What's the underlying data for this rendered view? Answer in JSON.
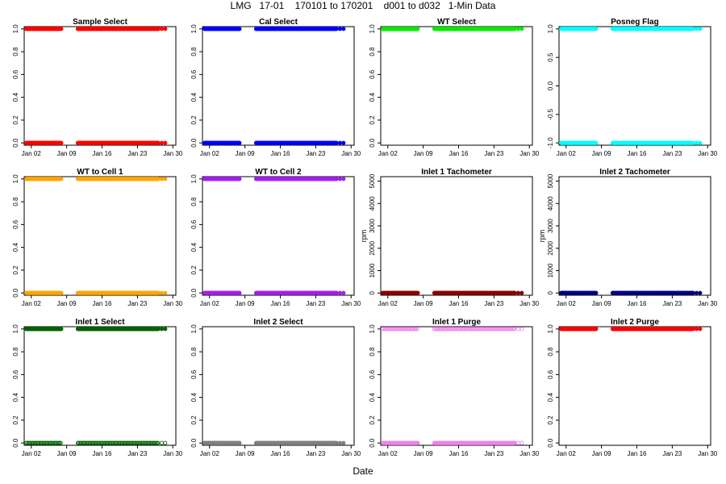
{
  "page": {
    "title": "LMG   17-01    170101 to 170201    d001 to d032   1-Min Data",
    "xlabel": "Date"
  },
  "chart_data": [
    {
      "type": "scatter",
      "title": "Sample Select",
      "ylabel": "",
      "ylim": [
        -0.02,
        1.02
      ],
      "yticks": [
        "0.0",
        "0.2",
        "0.4",
        "0.6",
        "0.8",
        "1.0"
      ],
      "ytick_values": [
        0,
        0.2,
        0.4,
        0.6,
        0.8,
        1.0
      ],
      "xticks": [
        "Jan 02",
        "Jan 09",
        "Jan 16",
        "Jan 23",
        "Jan 30"
      ],
      "xtick_days": [
        2,
        9,
        16,
        23,
        30
      ],
      "xlim_days": [
        0.6,
        30.6
      ],
      "color": "#ff0000",
      "marker": "filled",
      "series": [
        {
          "y": 1,
          "segments": [
            [
              1.0,
              8.0
            ],
            [
              11.2,
              27.2
            ]
          ],
          "extra": [
            27.8,
            28.5
          ]
        },
        {
          "y": 0,
          "segments": [
            [
              1.0,
              8.0
            ],
            [
              11.2,
              27.2
            ]
          ],
          "extra": [
            27.8,
            28.5
          ]
        }
      ]
    },
    {
      "type": "scatter",
      "title": "Cal Select",
      "ylabel": "",
      "ylim": [
        -0.02,
        1.02
      ],
      "yticks": [
        "0.0",
        "0.2",
        "0.4",
        "0.6",
        "0.8",
        "1.0"
      ],
      "ytick_values": [
        0,
        0.2,
        0.4,
        0.6,
        0.8,
        1.0
      ],
      "xticks": [
        "Jan 02",
        "Jan 09",
        "Jan 16",
        "Jan 23",
        "Jan 30"
      ],
      "xtick_days": [
        2,
        9,
        16,
        23,
        30
      ],
      "xlim_days": [
        0.6,
        30.6
      ],
      "color": "#0000ff",
      "marker": "filled",
      "series": [
        {
          "y": 1,
          "segments": [
            [
              1.0,
              8.0
            ],
            [
              11.2,
              27.2
            ]
          ],
          "extra": [
            27.8,
            28.5
          ]
        },
        {
          "y": 0,
          "segments": [
            [
              1.0,
              8.0
            ],
            [
              11.2,
              27.2
            ]
          ],
          "extra": [
            27.8,
            28.5
          ]
        }
      ]
    },
    {
      "type": "scatter",
      "title": "WT Select",
      "ylabel": "",
      "ylim": [
        -0.02,
        1.02
      ],
      "yticks": [
        "0.0",
        "0.2",
        "0.4",
        "0.6",
        "0.8",
        "1.0"
      ],
      "ytick_values": [
        0,
        0.2,
        0.4,
        0.6,
        0.8,
        1.0
      ],
      "xticks": [
        "Jan 02",
        "Jan 09",
        "Jan 16",
        "Jan 23",
        "Jan 30"
      ],
      "xtick_days": [
        2,
        9,
        16,
        23,
        30
      ],
      "xlim_days": [
        0.6,
        30.6
      ],
      "color": "#00ee00",
      "marker": "filled",
      "series": [
        {
          "y": 1,
          "segments": [
            [
              1.0,
              8.0
            ],
            [
              11.2,
              27.2
            ]
          ],
          "extra": [
            27.8,
            28.5
          ]
        }
      ]
    },
    {
      "type": "scatter",
      "title": "Posneg Flag",
      "ylabel": "",
      "ylim": [
        -1.04,
        1.04
      ],
      "yticks": [
        "-1.0",
        "-0.5",
        "0.0",
        "0.5",
        "1.0"
      ],
      "ytick_values": [
        -1,
        -0.5,
        0,
        0.5,
        1.0
      ],
      "xticks": [
        "Jan 02",
        "Jan 09",
        "Jan 16",
        "Jan 23",
        "Jan 30"
      ],
      "xtick_days": [
        2,
        9,
        16,
        23,
        30
      ],
      "xlim_days": [
        0.6,
        30.6
      ],
      "color": "#00ffff",
      "marker": "filled",
      "series": [
        {
          "y": 1,
          "segments": [
            [
              1.0,
              8.0
            ],
            [
              11.2,
              27.2
            ]
          ],
          "extra": [
            27.8,
            28.5
          ]
        },
        {
          "y": -1,
          "segments": [
            [
              1.0,
              8.0
            ],
            [
              11.2,
              27.2
            ]
          ],
          "extra": [
            27.8,
            28.5
          ]
        }
      ]
    },
    {
      "type": "scatter",
      "title": "WT to Cell 1",
      "ylabel": "",
      "ylim": [
        -0.02,
        1.02
      ],
      "yticks": [
        "0.0",
        "0.2",
        "0.4",
        "0.6",
        "0.8",
        "1.0"
      ],
      "ytick_values": [
        0,
        0.2,
        0.4,
        0.6,
        0.8,
        1.0
      ],
      "xticks": [
        "Jan 02",
        "Jan 09",
        "Jan 16",
        "Jan 23",
        "Jan 30"
      ],
      "xtick_days": [
        2,
        9,
        16,
        23,
        30
      ],
      "xlim_days": [
        0.6,
        30.6
      ],
      "color": "#ffa500",
      "marker": "filled",
      "series": [
        {
          "y": 1,
          "segments": [
            [
              1.0,
              8.0
            ],
            [
              11.2,
              27.2
            ]
          ],
          "extra": [
            27.8,
            28.5
          ]
        },
        {
          "y": 0,
          "segments": [
            [
              1.0,
              8.0
            ],
            [
              11.2,
              27.2
            ]
          ],
          "extra": [
            27.8,
            28.5
          ]
        }
      ]
    },
    {
      "type": "scatter",
      "title": "WT to Cell 2",
      "ylabel": "",
      "ylim": [
        -0.02,
        1.02
      ],
      "yticks": [
        "0.0",
        "0.2",
        "0.4",
        "0.6",
        "0.8",
        "1.0"
      ],
      "ytick_values": [
        0,
        0.2,
        0.4,
        0.6,
        0.8,
        1.0
      ],
      "xticks": [
        "Jan 02",
        "Jan 09",
        "Jan 16",
        "Jan 23",
        "Jan 30"
      ],
      "xtick_days": [
        2,
        9,
        16,
        23,
        30
      ],
      "xlim_days": [
        0.6,
        30.6
      ],
      "color": "#a020f0",
      "marker": "filled",
      "series": [
        {
          "y": 1,
          "segments": [
            [
              1.0,
              8.0
            ],
            [
              11.2,
              27.2
            ]
          ],
          "extra": [
            27.8,
            28.5
          ]
        },
        {
          "y": 0,
          "segments": [
            [
              1.0,
              8.0
            ],
            [
              11.2,
              27.2
            ]
          ],
          "extra": [
            27.8,
            28.5
          ]
        }
      ]
    },
    {
      "type": "scatter",
      "title": "Inlet 1 Tachometer",
      "ylabel": "rpm",
      "ylim": [
        -100,
        5200
      ],
      "yticks": [
        "0",
        "1000",
        "2000",
        "3000",
        "4000",
        "5000"
      ],
      "ytick_values": [
        0,
        1000,
        2000,
        3000,
        4000,
        5000
      ],
      "xticks": [
        "Jan 02",
        "Jan 09",
        "Jan 16",
        "Jan 23",
        "Jan 30"
      ],
      "xtick_days": [
        2,
        9,
        16,
        23,
        30
      ],
      "xlim_days": [
        0.6,
        30.6
      ],
      "color": "#8b0000",
      "marker": "filled",
      "series": [
        {
          "y": 0,
          "segments": [
            [
              1.0,
              8.0
            ],
            [
              11.2,
              27.2
            ]
          ],
          "extra": [
            27.8,
            28.5
          ]
        }
      ]
    },
    {
      "type": "scatter",
      "title": "Inlet 2 Tachometer",
      "ylabel": "rpm",
      "ylim": [
        -100,
        5200
      ],
      "yticks": [
        "0",
        "1000",
        "2000",
        "3000",
        "4000",
        "5000"
      ],
      "ytick_values": [
        0,
        1000,
        2000,
        3000,
        4000,
        5000
      ],
      "xticks": [
        "Jan 02",
        "Jan 09",
        "Jan 16",
        "Jan 23",
        "Jan 30"
      ],
      "xtick_days": [
        2,
        9,
        16,
        23,
        30
      ],
      "xlim_days": [
        0.6,
        30.6
      ],
      "color": "#000080",
      "marker": "filled",
      "series": [
        {
          "y": 0,
          "segments": [
            [
              1.0,
              8.0
            ],
            [
              11.2,
              27.2
            ]
          ],
          "extra": [
            27.8,
            28.5
          ]
        }
      ]
    },
    {
      "type": "scatter",
      "title": "Inlet 1 Select",
      "ylabel": "",
      "ylim": [
        -0.02,
        1.02
      ],
      "yticks": [
        "0.0",
        "0.2",
        "0.4",
        "0.6",
        "0.8",
        "1.0"
      ],
      "ytick_values": [
        0,
        0.2,
        0.4,
        0.6,
        0.8,
        1.0
      ],
      "xticks": [
        "Jan 02",
        "Jan 09",
        "Jan 16",
        "Jan 23",
        "Jan 30"
      ],
      "xtick_days": [
        2,
        9,
        16,
        23,
        30
      ],
      "xlim_days": [
        0.6,
        30.6
      ],
      "color": "#006400",
      "marker": "filled",
      "series": [
        {
          "y": 1,
          "segments": [
            [
              1.0,
              8.0
            ],
            [
              11.2,
              27.2
            ]
          ],
          "extra": [
            27.8,
            28.5
          ]
        },
        {
          "y": 0,
          "segments": [
            [
              1.0,
              8.0
            ],
            [
              11.2,
              27.2
            ]
          ],
          "extra": [
            27.8,
            28.5
          ],
          "sparse": true
        }
      ]
    },
    {
      "type": "scatter",
      "title": "Inlet 2 Select",
      "ylabel": "",
      "ylim": [
        -0.02,
        1.02
      ],
      "yticks": [
        "0.0",
        "0.2",
        "0.4",
        "0.6",
        "0.8",
        "1.0"
      ],
      "ytick_values": [
        0,
        0.2,
        0.4,
        0.6,
        0.8,
        1.0
      ],
      "xticks": [
        "Jan 02",
        "Jan 09",
        "Jan 16",
        "Jan 23",
        "Jan 30"
      ],
      "xtick_days": [
        2,
        9,
        16,
        23,
        30
      ],
      "xlim_days": [
        0.6,
        30.6
      ],
      "color": "#808080",
      "marker": "filled",
      "series": [
        {
          "y": 0,
          "segments": [
            [
              1.0,
              8.0
            ],
            [
              11.2,
              27.2
            ]
          ],
          "extra": [
            27.8,
            28.5
          ]
        }
      ]
    },
    {
      "type": "scatter",
      "title": "Inlet 1 Purge",
      "ylabel": "",
      "ylim": [
        -0.02,
        1.02
      ],
      "yticks": [
        "0.0",
        "0.2",
        "0.4",
        "0.6",
        "0.8",
        "1.0"
      ],
      "ytick_values": [
        0,
        0.2,
        0.4,
        0.6,
        0.8,
        1.0
      ],
      "xticks": [
        "Jan 02",
        "Jan 09",
        "Jan 16",
        "Jan 23",
        "Jan 30"
      ],
      "xtick_days": [
        2,
        9,
        16,
        23,
        30
      ],
      "xlim_days": [
        0.6,
        30.6
      ],
      "color": "#ee82ee",
      "marker": "open",
      "series": [
        {
          "y": 1,
          "segments": [
            [
              1.0,
              8.0
            ],
            [
              11.2,
              27.2
            ]
          ],
          "extra": [
            27.8,
            28.5
          ],
          "sparse": true
        },
        {
          "y": 0,
          "segments": [
            [
              1.0,
              8.0
            ],
            [
              11.2,
              27.2
            ]
          ],
          "extra": [
            27.8,
            28.5
          ]
        }
      ]
    },
    {
      "type": "scatter",
      "title": "Inlet 2 Purge",
      "ylabel": "",
      "ylim": [
        -0.02,
        1.02
      ],
      "yticks": [
        "0.0",
        "0.2",
        "0.4",
        "0.6",
        "0.8",
        "1.0"
      ],
      "ytick_values": [
        0,
        0.2,
        0.4,
        0.6,
        0.8,
        1.0
      ],
      "xticks": [
        "Jan 02",
        "Jan 09",
        "Jan 16",
        "Jan 23",
        "Jan 30"
      ],
      "xtick_days": [
        2,
        9,
        16,
        23,
        30
      ],
      "xlim_days": [
        0.6,
        30.6
      ],
      "color": "#ff0000",
      "marker": "filled",
      "series": [
        {
          "y": 1,
          "segments": [
            [
              1.0,
              8.0
            ],
            [
              11.2,
              27.2
            ]
          ],
          "extra": [
            27.8,
            28.5
          ]
        }
      ]
    }
  ]
}
